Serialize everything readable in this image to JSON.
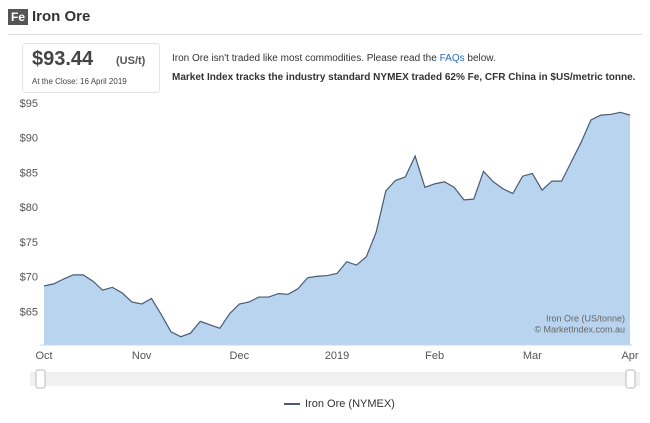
{
  "header": {
    "badge": "Fe",
    "title": "Iron Ore"
  },
  "quote": {
    "price": "$93.44",
    "unit": "(US/t)",
    "close": "At the Close: 16 April 2019"
  },
  "notice": {
    "before": "Iron Ore isn't traded like most commodities. Please read the ",
    "link": "FAQs",
    "after": " below.",
    "tracks": "Market Index tracks the industry standard NYMEX traded 62% Fe, CFR China in $US/metric tonne."
  },
  "chart_data": {
    "type": "area",
    "categories": [
      "Oct",
      null,
      null,
      null,
      null,
      null,
      null,
      null,
      null,
      null,
      "Nov",
      null,
      null,
      null,
      null,
      null,
      null,
      null,
      null,
      null,
      "Dec",
      null,
      null,
      null,
      null,
      null,
      null,
      null,
      null,
      null,
      "2019",
      null,
      null,
      null,
      null,
      null,
      null,
      null,
      null,
      null,
      "Feb",
      null,
      null,
      null,
      null,
      null,
      null,
      null,
      null,
      null,
      "Mar",
      null,
      null,
      null,
      null,
      null,
      null,
      null,
      null,
      null,
      "Apr"
    ],
    "series": [
      {
        "name": "Iron Ore (NYMEX)",
        "color": "#4a5a75",
        "fill": "#b9d4ee",
        "values": [
          68.8,
          69.1,
          69.8,
          70.4,
          70.4,
          69.5,
          68.2,
          68.6,
          67.8,
          66.5,
          66.2,
          67,
          64.7,
          62.2,
          61.5,
          62,
          63.7,
          63.2,
          62.7,
          64.8,
          66.2,
          66.5,
          67.2,
          67.2,
          67.7,
          67.6,
          68.4,
          70,
          70.2,
          70.3,
          70.6,
          72.3,
          71.8,
          73,
          76.5,
          82.5,
          84,
          84.5,
          87.5,
          83,
          83.5,
          83.8,
          83,
          81.2,
          81.3,
          85.3,
          83.8,
          82.8,
          82.1,
          84.6,
          85,
          82.6,
          83.9,
          83.9,
          86.7,
          89.5,
          92.7,
          93.4,
          93.5,
          93.8,
          93.4
        ]
      }
    ],
    "ylim": [
      60.3,
      95
    ],
    "yticks": [
      {
        "value": 65,
        "label": "$65"
      },
      {
        "value": 70,
        "label": "$70"
      },
      {
        "value": 75,
        "label": "$75"
      },
      {
        "value": 80,
        "label": "$80"
      },
      {
        "value": 85,
        "label": "$85"
      },
      {
        "value": 90,
        "label": "$90"
      },
      {
        "value": 95,
        "label": "$95"
      }
    ],
    "credits": [
      "Iron Ore (US/tonne)",
      "© MarketIndex.com.au"
    ]
  }
}
